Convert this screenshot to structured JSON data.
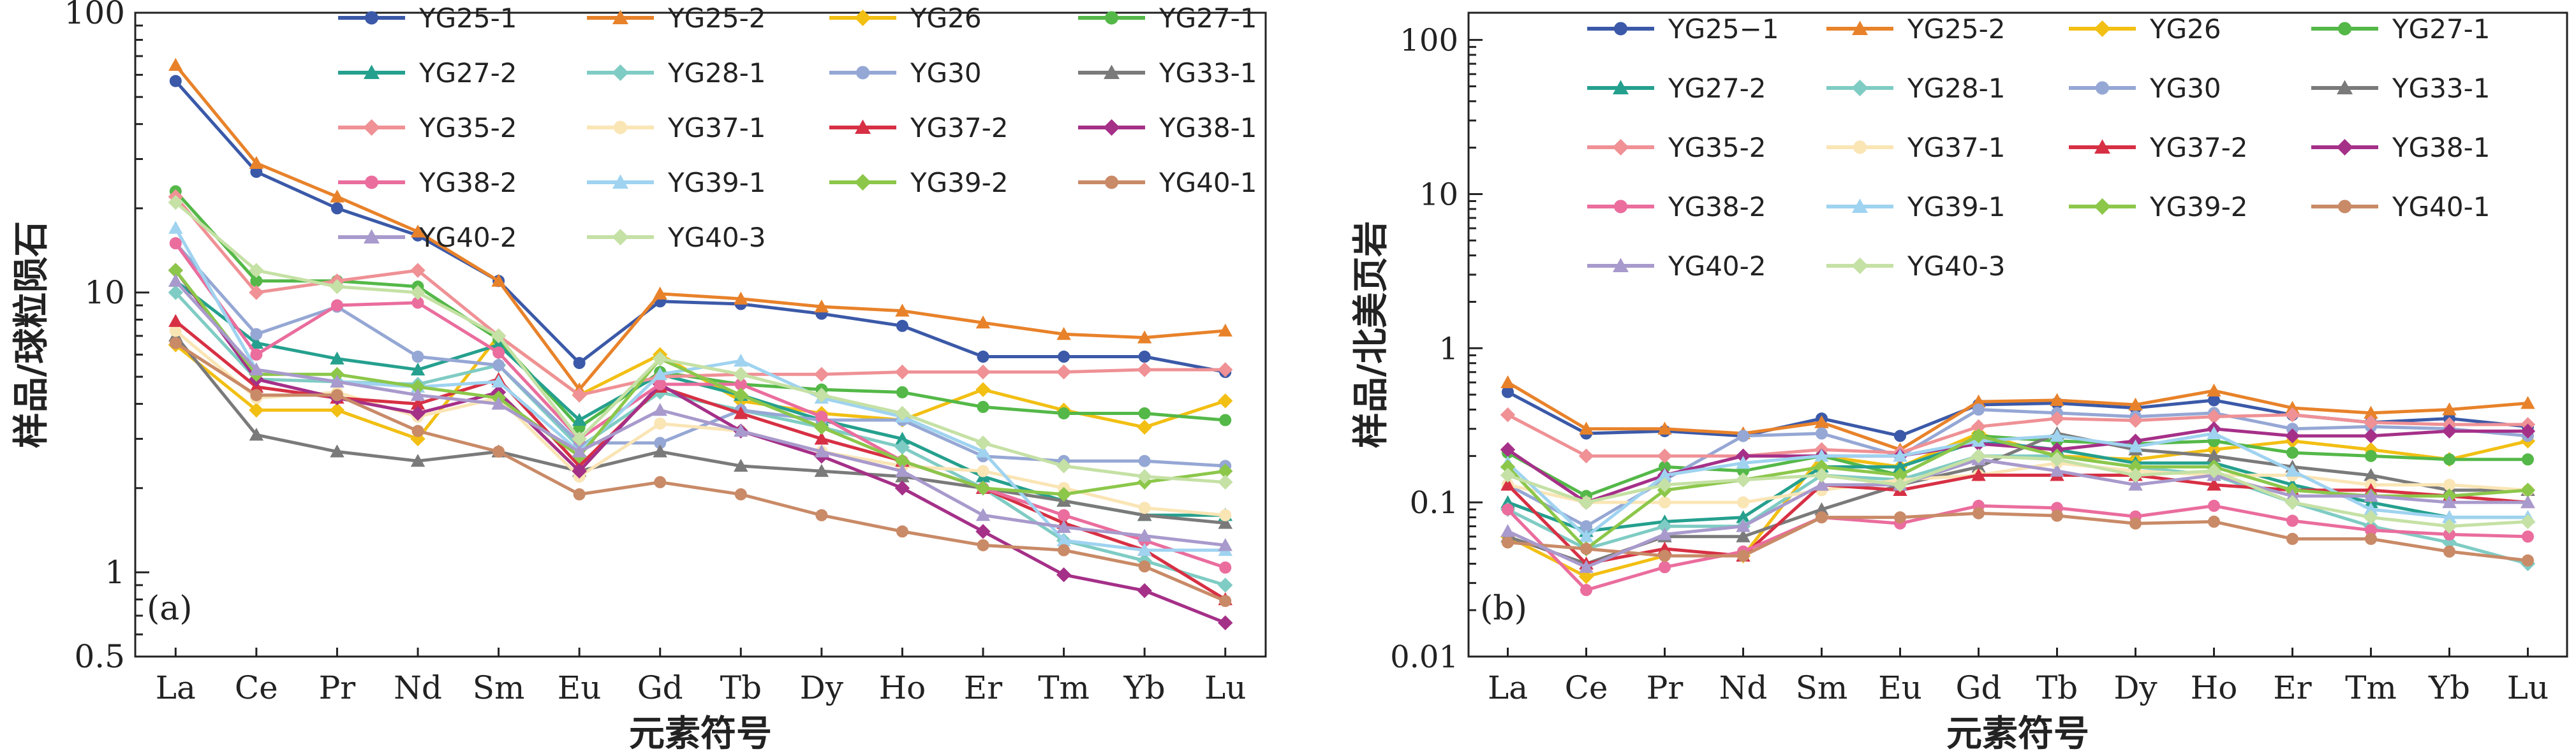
{
  "chart_data": [
    {
      "type": "line",
      "panel_label": "(a)",
      "xlabel": "元素符号",
      "ylabel": "样品/球粒陨石",
      "y_scale": "log",
      "ylim": [
        0.5,
        100
      ],
      "y_ticks": [
        0.5,
        1,
        10,
        100
      ],
      "y_tick_labels": [
        "0.5",
        "1",
        "10",
        "100"
      ],
      "categories": [
        "La",
        "Ce",
        "Pr",
        "Nd",
        "Sm",
        "Eu",
        "Gd",
        "Tb",
        "Dy",
        "Ho",
        "Er",
        "Tm",
        "Yb",
        "Lu"
      ],
      "legend_position": "top-right",
      "series": [
        {
          "name": "YG25-1",
          "color": "#3b59a8",
          "marker": "circle",
          "values": [
            57,
            27,
            20,
            16,
            11,
            5.6,
            9.3,
            9.1,
            8.4,
            7.6,
            5.9,
            5.9,
            5.9,
            5.2
          ]
        },
        {
          "name": "YG25-2",
          "color": "#e8822a",
          "marker": "triangle",
          "values": [
            65,
            29,
            22,
            16.5,
            11,
            4.5,
            9.9,
            9.5,
            8.9,
            8.6,
            7.8,
            7.1,
            6.9,
            7.3
          ]
        },
        {
          "name": "YG26",
          "color": "#f2bf13",
          "marker": "diamond",
          "values": [
            6.5,
            3.8,
            3.8,
            3.0,
            7.0,
            4.3,
            6.0,
            4.1,
            3.7,
            3.5,
            4.5,
            3.8,
            3.3,
            4.1
          ]
        },
        {
          "name": "YG27-1",
          "color": "#54b848",
          "marker": "circle",
          "values": [
            23,
            11,
            11,
            10.5,
            6.8,
            3.3,
            5.2,
            4.7,
            4.5,
            4.4,
            3.9,
            3.7,
            3.7,
            3.5
          ]
        },
        {
          "name": "YG27-2",
          "color": "#25a08e",
          "marker": "triangle",
          "values": [
            11,
            6.6,
            5.8,
            5.3,
            6.5,
            3.5,
            5.1,
            4.3,
            3.5,
            3.0,
            2.2,
            1.8,
            1.6,
            1.6
          ]
        },
        {
          "name": "YG28-1",
          "color": "#7fccc4",
          "marker": "diamond",
          "values": [
            10,
            4.9,
            4.8,
            4.7,
            5.5,
            2.8,
            4.4,
            3.8,
            3.3,
            2.8,
            2.0,
            1.3,
            1.1,
            0.9
          ]
        },
        {
          "name": "YG30",
          "color": "#95a7d4",
          "marker": "circle",
          "values": [
            15,
            7.1,
            8.9,
            5.9,
            5.5,
            2.9,
            2.9,
            3.8,
            3.5,
            3.5,
            2.6,
            2.5,
            2.5,
            2.4
          ]
        },
        {
          "name": "YG33-1",
          "color": "#7a7a7a",
          "marker": "triangle",
          "values": [
            7.0,
            3.1,
            2.7,
            2.5,
            2.7,
            2.3,
            2.7,
            2.4,
            2.3,
            2.2,
            2.0,
            1.8,
            1.6,
            1.5
          ]
        },
        {
          "name": "YG35-2",
          "color": "#ef9195",
          "marker": "diamond",
          "values": [
            22,
            10,
            11,
            12,
            7.0,
            4.3,
            5.0,
            5.1,
            5.1,
            5.2,
            5.2,
            5.2,
            5.3,
            5.3
          ]
        },
        {
          "name": "YG37-1",
          "color": "#fae5b5",
          "marker": "circle",
          "values": [
            7.3,
            4.2,
            4.4,
            3.6,
            4.2,
            2.2,
            3.4,
            3.2,
            2.7,
            2.4,
            2.3,
            2.0,
            1.7,
            1.6
          ]
        },
        {
          "name": "YG37-2",
          "color": "#d73044",
          "marker": "triangle",
          "values": [
            7.9,
            4.6,
            4.2,
            4.0,
            4.9,
            2.4,
            4.6,
            3.7,
            3.0,
            2.5,
            2.0,
            1.5,
            1.2,
            0.8
          ]
        },
        {
          "name": "YG38-1",
          "color": "#a53088",
          "marker": "diamond",
          "values": [
            12,
            4.9,
            4.2,
            3.7,
            4.4,
            2.3,
            4.7,
            3.2,
            2.6,
            2.0,
            1.4,
            0.98,
            0.86,
            0.66
          ]
        },
        {
          "name": "YG38-2",
          "color": "#ea6d9d",
          "marker": "circle",
          "values": [
            15,
            6.0,
            9.0,
            9.2,
            6.1,
            3.0,
            4.7,
            4.7,
            3.6,
            2.5,
            2.0,
            1.6,
            1.3,
            1.04
          ]
        },
        {
          "name": "YG39-1",
          "color": "#9fd3f0",
          "marker": "triangle",
          "values": [
            17,
            5.3,
            4.8,
            4.6,
            4.8,
            2.7,
            5.1,
            5.7,
            4.2,
            3.6,
            2.7,
            1.3,
            1.2,
            1.2
          ]
        },
        {
          "name": "YG39-2",
          "color": "#8cc74a",
          "marker": "diamond",
          "values": [
            12,
            5.1,
            5.1,
            4.6,
            4.2,
            2.6,
            5.8,
            4.3,
            3.3,
            2.5,
            2.0,
            1.9,
            2.1,
            2.3
          ]
        },
        {
          "name": "YG40-1",
          "color": "#c98a67",
          "marker": "circle",
          "values": [
            6.6,
            4.3,
            4.3,
            3.2,
            2.7,
            1.9,
            2.1,
            1.9,
            1.6,
            1.4,
            1.25,
            1.2,
            1.05,
            0.79
          ]
        },
        {
          "name": "YG40-2",
          "color": "#a89acc",
          "marker": "triangle",
          "values": [
            11,
            5.3,
            4.8,
            4.3,
            4.0,
            2.7,
            3.8,
            3.2,
            2.7,
            2.3,
            1.6,
            1.45,
            1.35,
            1.25
          ]
        },
        {
          "name": "YG40-3",
          "color": "#c5e1a5",
          "marker": "diamond",
          "values": [
            21,
            12,
            10.5,
            10,
            7.0,
            3.0,
            5.8,
            5.1,
            4.3,
            3.7,
            2.9,
            2.4,
            2.2,
            2.1
          ]
        }
      ]
    },
    {
      "type": "line",
      "panel_label": "(b)",
      "xlabel": "元素符号",
      "ylabel": "样品/北美页岩",
      "y_scale": "log",
      "ylim": [
        0.01,
        150
      ],
      "y_ticks": [
        0.01,
        0.1,
        1,
        10,
        100
      ],
      "y_tick_labels": [
        "0.01",
        "0.1",
        "1",
        "10",
        "100"
      ],
      "categories": [
        "La",
        "Ce",
        "Pr",
        "Nd",
        "Sm",
        "Eu",
        "Gd",
        "Tb",
        "Dy",
        "Ho",
        "Er",
        "Tm",
        "Yb",
        "Lu"
      ],
      "legend_position": "top",
      "series": [
        {
          "name": "YG25−1",
          "color": "#3b59a8",
          "marker": "circle",
          "values": [
            0.52,
            0.28,
            0.29,
            0.27,
            0.35,
            0.27,
            0.43,
            0.44,
            0.41,
            0.46,
            0.37,
            0.33,
            0.35,
            0.31
          ]
        },
        {
          "name": "YG25-2",
          "color": "#e8822a",
          "marker": "triangle",
          "values": [
            0.6,
            0.3,
            0.3,
            0.28,
            0.33,
            0.22,
            0.45,
            0.46,
            0.43,
            0.53,
            0.41,
            0.38,
            0.4,
            0.44
          ]
        },
        {
          "name": "YG26",
          "color": "#f2bf13",
          "marker": "diamond",
          "values": [
            0.06,
            0.033,
            0.045,
            0.045,
            0.2,
            0.17,
            0.28,
            0.2,
            0.19,
            0.22,
            0.25,
            0.22,
            0.19,
            0.25
          ]
        },
        {
          "name": "YG27-1",
          "color": "#54b848",
          "marker": "circle",
          "values": [
            0.21,
            0.11,
            0.17,
            0.16,
            0.2,
            0.15,
            0.27,
            0.25,
            0.24,
            0.25,
            0.21,
            0.2,
            0.19,
            0.19
          ]
        },
        {
          "name": "YG27-2",
          "color": "#25a08e",
          "marker": "triangle",
          "values": [
            0.1,
            0.065,
            0.075,
            0.08,
            0.17,
            0.17,
            0.25,
            0.22,
            0.18,
            0.18,
            0.13,
            0.1,
            0.08,
            0.08
          ]
        },
        {
          "name": "YG28-1",
          "color": "#7fccc4",
          "marker": "diamond",
          "values": [
            0.09,
            0.05,
            0.07,
            0.07,
            0.15,
            0.14,
            0.2,
            0.2,
            0.17,
            0.15,
            0.1,
            0.07,
            0.055,
            0.04
          ]
        },
        {
          "name": "YG30",
          "color": "#95a7d4",
          "marker": "circle",
          "values": [
            0.13,
            0.07,
            0.14,
            0.27,
            0.28,
            0.2,
            0.4,
            0.38,
            0.36,
            0.38,
            0.3,
            0.31,
            0.3,
            0.27
          ]
        },
        {
          "name": "YG33-1",
          "color": "#7a7a7a",
          "marker": "triangle",
          "values": [
            0.06,
            0.04,
            0.06,
            0.06,
            0.09,
            0.13,
            0.17,
            0.28,
            0.22,
            0.2,
            0.17,
            0.15,
            0.12,
            0.12
          ]
        },
        {
          "name": "YG35-2",
          "color": "#ef9195",
          "marker": "diamond",
          "values": [
            0.37,
            0.2,
            0.2,
            0.2,
            0.22,
            0.21,
            0.31,
            0.35,
            0.34,
            0.36,
            0.37,
            0.33,
            0.32,
            0.32
          ]
        },
        {
          "name": "YG37-1",
          "color": "#fae5b5",
          "marker": "circle",
          "values": [
            0.13,
            0.1,
            0.1,
            0.1,
            0.12,
            0.14,
            0.15,
            0.18,
            0.16,
            0.15,
            0.15,
            0.13,
            0.13,
            0.12
          ]
        },
        {
          "name": "YG37-2",
          "color": "#d73044",
          "marker": "triangle",
          "values": [
            0.13,
            0.04,
            0.05,
            0.045,
            0.13,
            0.12,
            0.15,
            0.15,
            0.15,
            0.13,
            0.12,
            0.12,
            0.11,
            0.1
          ]
        },
        {
          "name": "YG38-1",
          "color": "#a53088",
          "marker": "diamond",
          "values": [
            0.22,
            0.1,
            0.15,
            0.2,
            0.2,
            0.2,
            0.24,
            0.22,
            0.25,
            0.3,
            0.27,
            0.27,
            0.29,
            0.29
          ]
        },
        {
          "name": "YG38-2",
          "color": "#ea6d9d",
          "marker": "circle",
          "values": [
            0.09,
            0.027,
            0.038,
            0.048,
            0.08,
            0.073,
            0.095,
            0.092,
            0.081,
            0.095,
            0.076,
            0.066,
            0.062,
            0.06
          ]
        },
        {
          "name": "YG39-1",
          "color": "#9fd3f0",
          "marker": "triangle",
          "values": [
            0.18,
            0.06,
            0.15,
            0.18,
            0.2,
            0.2,
            0.25,
            0.27,
            0.23,
            0.28,
            0.16,
            0.09,
            0.08,
            0.08
          ]
        },
        {
          "name": "YG39-2",
          "color": "#8cc74a",
          "marker": "diamond",
          "values": [
            0.17,
            0.05,
            0.12,
            0.14,
            0.17,
            0.15,
            0.27,
            0.2,
            0.17,
            0.17,
            0.12,
            0.11,
            0.11,
            0.12
          ]
        },
        {
          "name": "YG40-1",
          "color": "#c98a67",
          "marker": "circle",
          "values": [
            0.055,
            0.05,
            0.045,
            0.045,
            0.08,
            0.08,
            0.085,
            0.082,
            0.073,
            0.075,
            0.058,
            0.058,
            0.048,
            0.042
          ]
        },
        {
          "name": "YG40-2",
          "color": "#a89acc",
          "marker": "triangle",
          "values": [
            0.065,
            0.038,
            0.062,
            0.07,
            0.13,
            0.13,
            0.19,
            0.16,
            0.13,
            0.15,
            0.11,
            0.11,
            0.1,
            0.1
          ]
        },
        {
          "name": "YG40-3",
          "color": "#c5e1a5",
          "marker": "diamond",
          "values": [
            0.15,
            0.1,
            0.13,
            0.14,
            0.15,
            0.13,
            0.2,
            0.19,
            0.15,
            0.16,
            0.1,
            0.08,
            0.07,
            0.075
          ]
        }
      ]
    }
  ]
}
